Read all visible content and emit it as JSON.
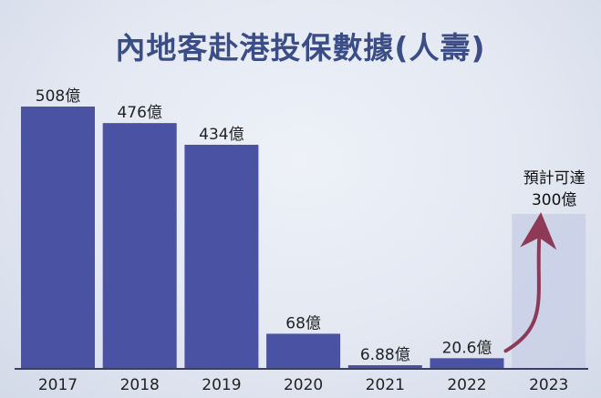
{
  "chart_data": {
    "type": "bar",
    "title": "內地客赴港投保數據(人壽)",
    "xlabel": "",
    "ylabel": "",
    "categories": [
      "2017",
      "2018",
      "2019",
      "2020",
      "2021",
      "2022",
      "2023"
    ],
    "values": [
      508,
      476,
      434,
      68,
      6.88,
      20.6,
      null
    ],
    "value_labels": [
      "508億",
      "476億",
      "434億",
      "68億",
      "6.88億",
      "20.6億",
      ""
    ],
    "projection": {
      "category": "2023",
      "value": 300,
      "text_line1": "預計可達",
      "text_line2": "300億"
    },
    "ylim": [
      0,
      508
    ],
    "grid": false,
    "legend": "none",
    "colors": {
      "bar": "#4a52a3",
      "projection_fill": "#c9d0e6",
      "arrow": "#8e3a57",
      "title": "#3b4d86",
      "axis": "#3a3f66"
    }
  }
}
